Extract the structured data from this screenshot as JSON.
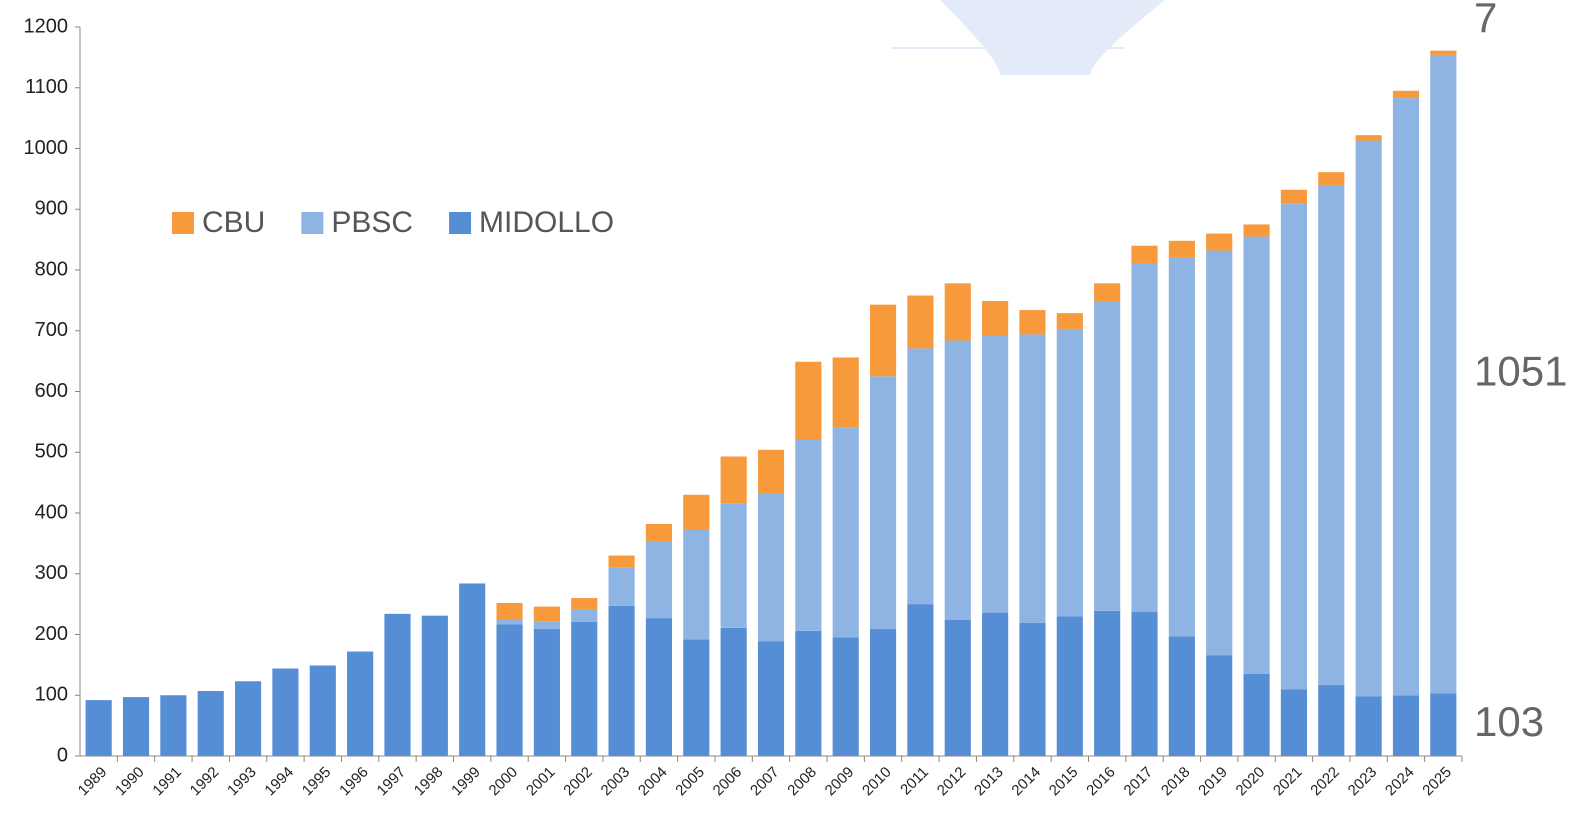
{
  "chart_data": {
    "type": "bar",
    "stacked": true,
    "categories": [
      "1989",
      "1990",
      "1991",
      "1992",
      "1993",
      "1994",
      "1995",
      "1996",
      "1997",
      "1998",
      "1999",
      "2000",
      "2001",
      "2002",
      "2003",
      "2004",
      "2005",
      "2006",
      "2007",
      "2008",
      "2009",
      "2010",
      "2011",
      "2012",
      "2013",
      "2014",
      "2015",
      "2016",
      "2017",
      "2018",
      "2019",
      "2020",
      "2021",
      "2022",
      "2023",
      "2024",
      "2025"
    ],
    "series": [
      {
        "name": "MIDOLLO",
        "color": "#558ed5",
        "values": [
          92,
          97,
          100,
          107,
          123,
          144,
          149,
          172,
          234,
          231,
          284,
          217,
          209,
          221,
          247,
          227,
          192,
          211,
          189,
          206,
          195,
          209,
          250,
          224,
          236,
          219,
          230,
          239,
          237,
          197,
          166,
          135,
          110,
          117,
          98,
          100,
          103
        ]
      },
      {
        "name": "PBSC",
        "color": "#8eb4e3",
        "values": [
          0,
          0,
          0,
          0,
          0,
          0,
          0,
          0,
          0,
          0,
          0,
          7,
          12,
          21,
          63,
          127,
          180,
          205,
          243,
          315,
          346,
          416,
          421,
          460,
          457,
          475,
          473,
          510,
          573,
          623,
          666,
          720,
          800,
          823,
          915,
          983,
          1051
        ]
      },
      {
        "name": "CBU",
        "color": "#f79a3c",
        "values": [
          0,
          0,
          0,
          0,
          0,
          0,
          0,
          0,
          0,
          0,
          0,
          28,
          25,
          18,
          20,
          28,
          58,
          77,
          72,
          128,
          115,
          118,
          87,
          94,
          56,
          40,
          26,
          29,
          30,
          28,
          28,
          20,
          22,
          21,
          9,
          12,
          7
        ]
      }
    ],
    "ylim": [
      0,
      1200
    ],
    "yticks": [
      0,
      100,
      200,
      300,
      400,
      500,
      600,
      700,
      800,
      900,
      1000,
      1100,
      1200
    ],
    "grid": false
  }
}
